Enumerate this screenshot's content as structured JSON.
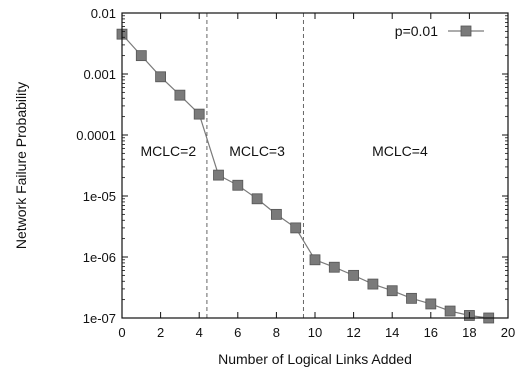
{
  "chart_data": {
    "type": "line",
    "title": "",
    "xlabel": "Number of Logical Links Added",
    "ylabel": "Network Failure Probability",
    "xlim": [
      0,
      20
    ],
    "ylim": [
      1e-07,
      0.01
    ],
    "yscale": "log",
    "grid": false,
    "legend_position": "top-right",
    "x_tick_labels": [
      "0",
      "2",
      "4",
      "6",
      "8",
      "10",
      "12",
      "14",
      "16",
      "18",
      "20"
    ],
    "y_tick_labels": [
      "0.01",
      "0.001",
      "0.0001",
      "1e-05",
      "1e-06",
      "1e-07"
    ],
    "series": [
      {
        "name": "p=0.01",
        "color": "#7a7a7a",
        "marker": "square",
        "x": [
          0,
          1,
          2,
          3,
          4,
          5,
          6,
          7,
          8,
          9,
          10,
          11,
          12,
          13,
          14,
          15,
          16,
          17,
          18,
          19
        ],
        "y": [
          0.0045,
          0.002,
          0.0009,
          0.00045,
          0.00022,
          2.2e-05,
          1.5e-05,
          9e-06,
          5e-06,
          3e-06,
          9e-07,
          6.8e-07,
          5e-07,
          3.6e-07,
          2.8e-07,
          2.1e-07,
          1.7e-07,
          1.3e-07,
          1.1e-07,
          1e-07
        ]
      }
    ],
    "vertical_lines": [
      {
        "x": 4.4,
        "style": "dashed"
      },
      {
        "x": 9.4,
        "style": "dashed"
      }
    ],
    "annotations": [
      {
        "text": "MCLC=2",
        "x": 2.4,
        "y": 4.5e-05
      },
      {
        "text": "MCLC=3",
        "x": 7.0,
        "y": 4.5e-05
      },
      {
        "text": "MCLC=4",
        "x": 14.4,
        "y": 4.5e-05
      }
    ]
  }
}
